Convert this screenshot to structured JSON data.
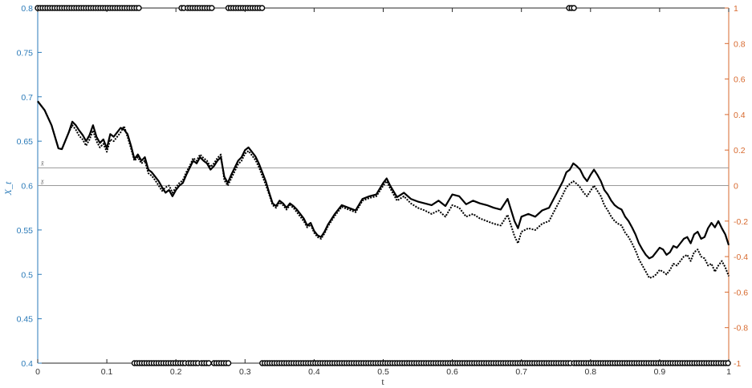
{
  "chart_data": {
    "type": "line",
    "xlabel": "t",
    "ylabel_left": "X_t",
    "ylabel_right": "",
    "xlim": [
      0,
      1
    ],
    "ylim_left": [
      0.4,
      0.8
    ],
    "ylim_right": [
      -1,
      1
    ],
    "x_ticks": [
      "0",
      "0.1",
      "0.2",
      "0.3",
      "0.4",
      "0.5",
      "0.6",
      "0.7",
      "0.8",
      "0.9",
      "1"
    ],
    "y_left_ticks": [
      "0.4",
      "0.45",
      "0.5",
      "0.55",
      "0.6",
      "0.65",
      "0.7",
      "0.75",
      "0.8"
    ],
    "y_right_ticks": [
      "-1",
      "-0.8",
      "-0.6",
      "-0.4",
      "-0.2",
      "0",
      "0.2",
      "0.4",
      "0.6",
      "0.8",
      "1"
    ],
    "grid": false,
    "colors": {
      "left_axis": "#2a7ab8",
      "right_axis": "#d7692e",
      "series": "#000000",
      "ref_lines": "#999999"
    },
    "reference_lines": [
      {
        "label": "x̄",
        "y": 0.62
      },
      {
        "label": "x̱",
        "y": 0.6
      }
    ],
    "series": [
      {
        "style": "solid",
        "x": [
          0,
          0.01,
          0.02,
          0.03,
          0.035,
          0.045,
          0.05,
          0.055,
          0.06,
          0.065,
          0.07,
          0.075,
          0.08,
          0.085,
          0.09,
          0.095,
          0.1,
          0.105,
          0.11,
          0.115,
          0.12,
          0.125,
          0.13,
          0.135,
          0.14,
          0.145,
          0.15,
          0.155,
          0.16,
          0.165,
          0.17,
          0.175,
          0.18,
          0.185,
          0.19,
          0.195,
          0.2,
          0.205,
          0.21,
          0.215,
          0.22,
          0.225,
          0.23,
          0.235,
          0.24,
          0.245,
          0.25,
          0.255,
          0.26,
          0.265,
          0.27,
          0.275,
          0.28,
          0.285,
          0.29,
          0.295,
          0.3,
          0.305,
          0.31,
          0.315,
          0.32,
          0.325,
          0.33,
          0.335,
          0.34,
          0.345,
          0.35,
          0.355,
          0.36,
          0.365,
          0.37,
          0.375,
          0.38,
          0.385,
          0.39,
          0.395,
          0.4,
          0.405,
          0.41,
          0.415,
          0.42,
          0.43,
          0.44,
          0.45,
          0.46,
          0.47,
          0.48,
          0.49,
          0.5,
          0.505,
          0.51,
          0.52,
          0.53,
          0.54,
          0.55,
          0.56,
          0.57,
          0.58,
          0.59,
          0.6,
          0.61,
          0.62,
          0.63,
          0.64,
          0.65,
          0.66,
          0.67,
          0.68,
          0.69,
          0.695,
          0.7,
          0.71,
          0.72,
          0.73,
          0.74,
          0.75,
          0.76,
          0.765,
          0.77,
          0.775,
          0.78,
          0.785,
          0.79,
          0.795,
          0.8,
          0.805,
          0.81,
          0.815,
          0.82,
          0.825,
          0.83,
          0.835,
          0.84,
          0.845,
          0.85,
          0.855,
          0.86,
          0.865,
          0.87,
          0.875,
          0.88,
          0.885,
          0.89,
          0.895,
          0.9,
          0.905,
          0.91,
          0.915,
          0.92,
          0.925,
          0.93,
          0.935,
          0.94,
          0.945,
          0.95,
          0.955,
          0.96,
          0.965,
          0.97,
          0.975,
          0.98,
          0.985,
          0.99,
          0.995,
          1
        ],
        "values": [
          0.695,
          0.685,
          0.668,
          0.642,
          0.641,
          0.66,
          0.672,
          0.668,
          0.662,
          0.657,
          0.65,
          0.657,
          0.668,
          0.655,
          0.648,
          0.652,
          0.642,
          0.658,
          0.655,
          0.66,
          0.665,
          0.663,
          0.658,
          0.645,
          0.63,
          0.635,
          0.628,
          0.632,
          0.618,
          0.615,
          0.61,
          0.605,
          0.598,
          0.592,
          0.595,
          0.588,
          0.595,
          0.6,
          0.603,
          0.612,
          0.62,
          0.628,
          0.625,
          0.632,
          0.628,
          0.625,
          0.618,
          0.622,
          0.628,
          0.632,
          0.61,
          0.603,
          0.612,
          0.62,
          0.628,
          0.632,
          0.64,
          0.643,
          0.638,
          0.633,
          0.625,
          0.615,
          0.605,
          0.592,
          0.58,
          0.577,
          0.583,
          0.58,
          0.575,
          0.58,
          0.577,
          0.573,
          0.568,
          0.563,
          0.555,
          0.558,
          0.549,
          0.544,
          0.542,
          0.548,
          0.556,
          0.568,
          0.578,
          0.575,
          0.572,
          0.585,
          0.588,
          0.59,
          0.603,
          0.608,
          0.6,
          0.587,
          0.592,
          0.585,
          0.582,
          0.58,
          0.578,
          0.583,
          0.577,
          0.59,
          0.588,
          0.579,
          0.583,
          0.58,
          0.578,
          0.575,
          0.573,
          0.585,
          0.56,
          0.552,
          0.565,
          0.568,
          0.565,
          0.572,
          0.575,
          0.59,
          0.605,
          0.615,
          0.618,
          0.625,
          0.622,
          0.618,
          0.61,
          0.605,
          0.612,
          0.618,
          0.612,
          0.605,
          0.595,
          0.59,
          0.583,
          0.578,
          0.575,
          0.573,
          0.565,
          0.56,
          0.553,
          0.545,
          0.535,
          0.528,
          0.522,
          0.518,
          0.52,
          0.525,
          0.53,
          0.528,
          0.522,
          0.525,
          0.532,
          0.53,
          0.535,
          0.54,
          0.542,
          0.535,
          0.545,
          0.548,
          0.54,
          0.542,
          0.552,
          0.558,
          0.553,
          0.56,
          0.552,
          0.545,
          0.533
        ]
      },
      {
        "style": "dotted",
        "x": [
          0,
          0.01,
          0.02,
          0.03,
          0.035,
          0.045,
          0.05,
          0.055,
          0.06,
          0.065,
          0.07,
          0.075,
          0.08,
          0.085,
          0.09,
          0.095,
          0.1,
          0.105,
          0.11,
          0.115,
          0.12,
          0.125,
          0.13,
          0.135,
          0.14,
          0.145,
          0.15,
          0.155,
          0.16,
          0.165,
          0.17,
          0.175,
          0.18,
          0.185,
          0.19,
          0.195,
          0.2,
          0.205,
          0.21,
          0.215,
          0.22,
          0.225,
          0.23,
          0.235,
          0.24,
          0.245,
          0.25,
          0.255,
          0.26,
          0.265,
          0.27,
          0.275,
          0.28,
          0.285,
          0.29,
          0.295,
          0.3,
          0.305,
          0.31,
          0.315,
          0.32,
          0.325,
          0.33,
          0.335,
          0.34,
          0.345,
          0.35,
          0.355,
          0.36,
          0.365,
          0.37,
          0.375,
          0.38,
          0.385,
          0.39,
          0.395,
          0.4,
          0.405,
          0.41,
          0.415,
          0.42,
          0.43,
          0.44,
          0.45,
          0.46,
          0.47,
          0.48,
          0.49,
          0.5,
          0.505,
          0.51,
          0.52,
          0.53,
          0.54,
          0.55,
          0.56,
          0.57,
          0.58,
          0.59,
          0.6,
          0.61,
          0.62,
          0.63,
          0.64,
          0.65,
          0.66,
          0.67,
          0.68,
          0.69,
          0.695,
          0.7,
          0.71,
          0.72,
          0.73,
          0.74,
          0.75,
          0.76,
          0.765,
          0.77,
          0.775,
          0.78,
          0.785,
          0.79,
          0.795,
          0.8,
          0.805,
          0.81,
          0.815,
          0.82,
          0.825,
          0.83,
          0.835,
          0.84,
          0.845,
          0.85,
          0.855,
          0.86,
          0.865,
          0.87,
          0.875,
          0.88,
          0.885,
          0.89,
          0.895,
          0.9,
          0.905,
          0.91,
          0.915,
          0.92,
          0.925,
          0.93,
          0.935,
          0.94,
          0.945,
          0.95,
          0.955,
          0.96,
          0.965,
          0.97,
          0.975,
          0.98,
          0.985,
          0.99,
          0.995,
          1
        ],
        "values": [
          0.695,
          0.685,
          0.668,
          0.642,
          0.641,
          0.66,
          0.668,
          0.663,
          0.656,
          0.652,
          0.645,
          0.652,
          0.662,
          0.65,
          0.643,
          0.647,
          0.638,
          0.652,
          0.65,
          0.655,
          0.66,
          0.667,
          0.655,
          0.642,
          0.628,
          0.632,
          0.625,
          0.628,
          0.614,
          0.611,
          0.606,
          0.6,
          0.594,
          0.598,
          0.6,
          0.592,
          0.598,
          0.603,
          0.606,
          0.615,
          0.622,
          0.631,
          0.628,
          0.635,
          0.631,
          0.628,
          0.621,
          0.625,
          0.631,
          0.635,
          0.606,
          0.6,
          0.608,
          0.616,
          0.624,
          0.628,
          0.636,
          0.639,
          0.634,
          0.629,
          0.621,
          0.611,
          0.601,
          0.59,
          0.578,
          0.575,
          0.581,
          0.578,
          0.573,
          0.578,
          0.575,
          0.57,
          0.565,
          0.56,
          0.553,
          0.556,
          0.547,
          0.542,
          0.54,
          0.546,
          0.554,
          0.566,
          0.576,
          0.573,
          0.57,
          0.583,
          0.586,
          0.588,
          0.6,
          0.605,
          0.597,
          0.583,
          0.588,
          0.58,
          0.575,
          0.572,
          0.568,
          0.572,
          0.565,
          0.578,
          0.575,
          0.565,
          0.568,
          0.563,
          0.56,
          0.557,
          0.555,
          0.567,
          0.543,
          0.535,
          0.548,
          0.552,
          0.55,
          0.557,
          0.56,
          0.575,
          0.59,
          0.598,
          0.602,
          0.605,
          0.602,
          0.598,
          0.592,
          0.588,
          0.594,
          0.6,
          0.594,
          0.588,
          0.578,
          0.572,
          0.565,
          0.56,
          0.557,
          0.555,
          0.547,
          0.542,
          0.535,
          0.527,
          0.517,
          0.51,
          0.503,
          0.496,
          0.497,
          0.5,
          0.505,
          0.503,
          0.5,
          0.505,
          0.512,
          0.51,
          0.515,
          0.52,
          0.522,
          0.515,
          0.525,
          0.528,
          0.52,
          0.518,
          0.51,
          0.512,
          0.503,
          0.51,
          0.515,
          0.508,
          0.498
        ]
      }
    ],
    "state_indicator": {
      "top_value": 1,
      "bottom_value": -1,
      "top_segments": [
        [
          0,
          0.147
        ],
        [
          0.208,
          0.213
        ],
        [
          0.217,
          0.235
        ],
        [
          0.238,
          0.255
        ],
        [
          0.276,
          0.325
        ],
        [
          0.769,
          0.777
        ]
      ],
      "bottom_segments": [
        [
          0.14,
          0.145
        ],
        [
          0.147,
          0.215
        ],
        [
          0.218,
          0.232
        ],
        [
          0.237,
          0.248
        ],
        [
          0.255,
          0.278
        ],
        [
          0.325,
          0.773
        ],
        [
          0.776,
          1.0
        ]
      ]
    }
  }
}
